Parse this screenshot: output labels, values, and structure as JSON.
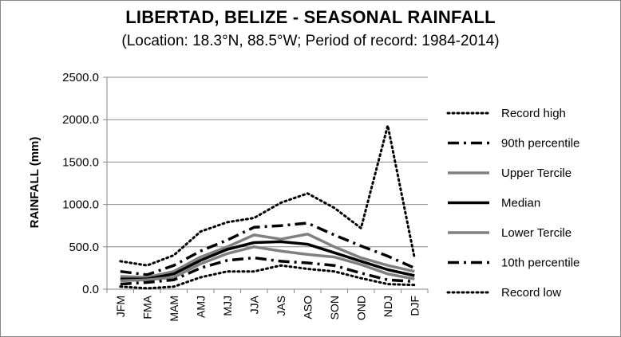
{
  "chart_data": {
    "type": "line",
    "title": "LIBERTAD, BELIZE - SEASONAL RAINFALL",
    "subtitle": "(Location: 18.3°N, 88.5°W; Period of record: 1984-2014)",
    "xlabel": "",
    "ylabel": "RAINFALL (mm)",
    "ylim": [
      0,
      2500
    ],
    "y_ticks": [
      "0.0",
      "500.0",
      "1000.0",
      "1500.0",
      "2000.0",
      "2500.0"
    ],
    "grid": "horizontal",
    "legend_position": "right",
    "categories": [
      "JFM",
      "FMA",
      "MAM",
      "AMJ",
      "MJJ",
      "JJA",
      "JAS",
      "ASO",
      "SON",
      "OND",
      "NDJ",
      "DJF"
    ],
    "series": [
      {
        "name": "Record high",
        "color": "#000000",
        "style": "dotted",
        "values": [
          330,
          280,
          400,
          680,
          790,
          840,
          1020,
          1130,
          960,
          720,
          1930,
          370
        ]
      },
      {
        "name": "90th percentile",
        "color": "#000000",
        "style": "dashdot",
        "values": [
          210,
          170,
          280,
          450,
          580,
          730,
          750,
          780,
          640,
          510,
          390,
          250
        ]
      },
      {
        "name": "Upper Tercile",
        "color": "#808080",
        "style": "solid",
        "values": [
          150,
          140,
          210,
          380,
          500,
          640,
          590,
          650,
          500,
          370,
          280,
          210
        ]
      },
      {
        "name": "Median",
        "color": "#000000",
        "style": "solid",
        "values": [
          120,
          120,
          180,
          340,
          470,
          550,
          560,
          530,
          430,
          330,
          230,
          160
        ]
      },
      {
        "name": "Lower Tercile",
        "color": "#808080",
        "style": "solid",
        "values": [
          100,
          110,
          140,
          300,
          420,
          500,
          450,
          410,
          380,
          290,
          180,
          120
        ]
      },
      {
        "name": "10th percentile",
        "color": "#000000",
        "style": "dashdot",
        "values": [
          60,
          80,
          110,
          250,
          340,
          370,
          330,
          310,
          280,
          190,
          110,
          90
        ]
      },
      {
        "name": "Record low",
        "color": "#000000",
        "style": "dotted",
        "values": [
          30,
          10,
          30,
          140,
          210,
          210,
          280,
          240,
          210,
          130,
          60,
          50
        ]
      }
    ]
  }
}
